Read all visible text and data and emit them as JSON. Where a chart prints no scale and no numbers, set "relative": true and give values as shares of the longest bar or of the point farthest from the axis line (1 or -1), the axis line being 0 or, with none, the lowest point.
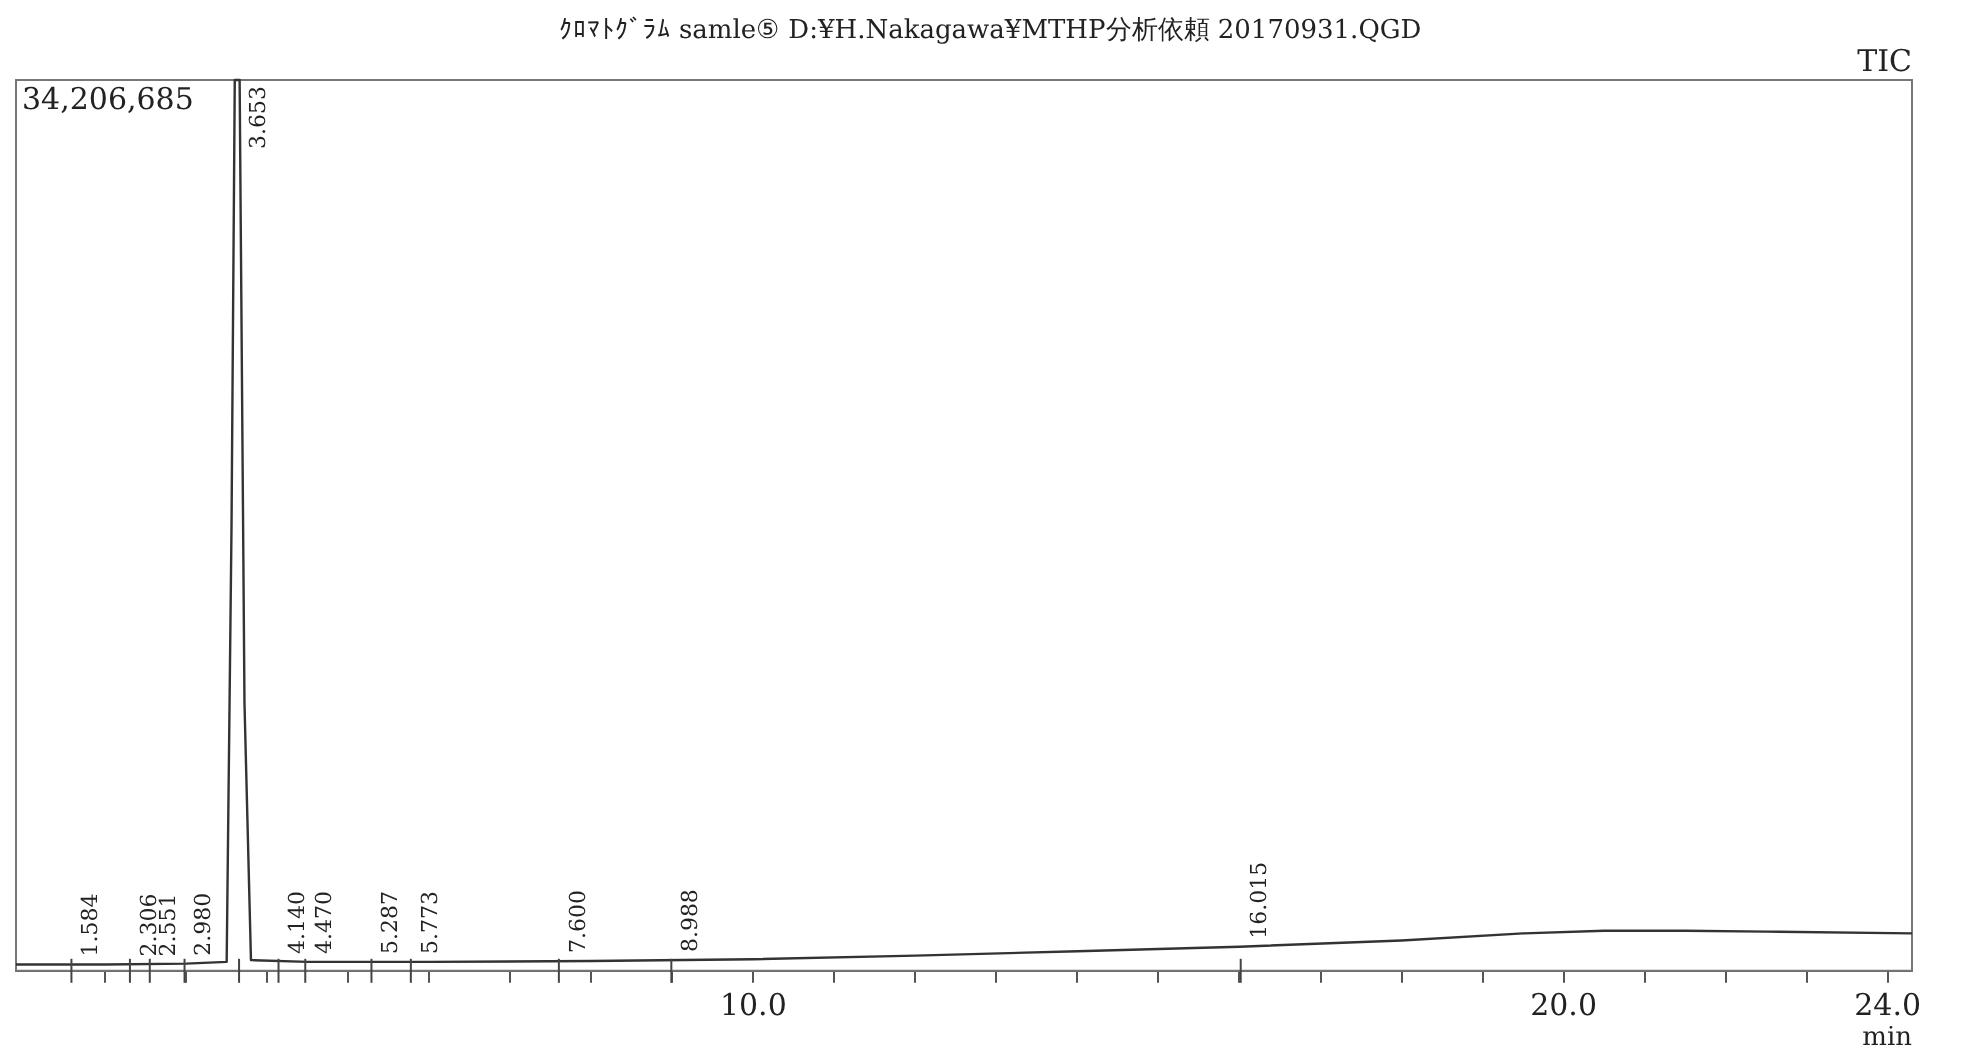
{
  "chart_data": {
    "type": "line",
    "title": "ｸﾛﾏﾄｸﾞﾗﾑ samle⑤ D:¥H.Nakagawa¥MTHP分析依頼  20170931.QGD",
    "xlabel": "min",
    "relative": true,
    "legend": false,
    "grid": false,
    "marker": "none",
    "line_style": "solid",
    "xlim": [
      0.9,
      24.3
    ],
    "xticks": [
      {
        "value": 2,
        "label": null
      },
      {
        "value": 3,
        "label": null
      },
      {
        "value": 4,
        "label": null
      },
      {
        "value": 5,
        "label": null
      },
      {
        "value": 6,
        "label": null
      },
      {
        "value": 7,
        "label": null
      },
      {
        "value": 8,
        "label": null
      },
      {
        "value": 9,
        "label": null
      },
      {
        "value": 10,
        "label": "10.0"
      },
      {
        "value": 11,
        "label": null
      },
      {
        "value": 12,
        "label": null
      },
      {
        "value": 13,
        "label": null
      },
      {
        "value": 14,
        "label": null
      },
      {
        "value": 15,
        "label": null
      },
      {
        "value": 16,
        "label": null
      },
      {
        "value": 17,
        "label": null
      },
      {
        "value": 18,
        "label": null
      },
      {
        "value": 19,
        "label": null
      },
      {
        "value": 20,
        "label": "20.0"
      },
      {
        "value": 21,
        "label": null
      },
      {
        "value": 22,
        "label": null
      },
      {
        "value": 23,
        "label": null
      },
      {
        "value": 24,
        "label": "24.0"
      }
    ],
    "series": [
      {
        "color": "#333333",
        "x": [
          0.9,
          2,
          3,
          3.5,
          3.56,
          3.6,
          3.66,
          3.72,
          3.8,
          4.5,
          6,
          8,
          10,
          12,
          14,
          16,
          18,
          19.5,
          20.5,
          21.5,
          22.5,
          24.3
        ],
        "values": [
          0.007,
          0.007,
          0.008,
          0.01,
          0.5,
          1,
          1,
          0.3,
          0.012,
          0.01,
          0.01,
          0.011,
          0.013,
          0.017,
          0.022,
          0.027,
          0.034,
          0.042,
          0.045,
          0.045,
          0.044,
          0.042
        ]
      }
    ],
    "annotations": [
      "34,206,685",
      "TIC",
      {
        "text": "1.584",
        "x": 1.584,
        "y": 0.007
      },
      {
        "text": "2.306",
        "x": 2.306,
        "y": 0.007
      },
      {
        "text": "2.551",
        "x": 2.551,
        "y": 0.007
      },
      {
        "text": "2.980",
        "x": 2.98,
        "y": 0.008
      },
      {
        "text": "3.653",
        "x": 3.653,
        "y": 1
      },
      {
        "text": "4.140",
        "x": 4.14,
        "y": 0.01
      },
      {
        "text": "4.470",
        "x": 4.47,
        "y": 0.01
      },
      {
        "text": "5.287",
        "x": 5.287,
        "y": 0.01
      },
      {
        "text": "5.773",
        "x": 5.773,
        "y": 0.01
      },
      {
        "text": "7.600",
        "x": 7.6,
        "y": 0.011
      },
      {
        "text": "8.988",
        "x": 8.988,
        "y": 0.012
      },
      {
        "text": "16.015",
        "x": 16.015,
        "y": 0.027
      }
    ]
  }
}
